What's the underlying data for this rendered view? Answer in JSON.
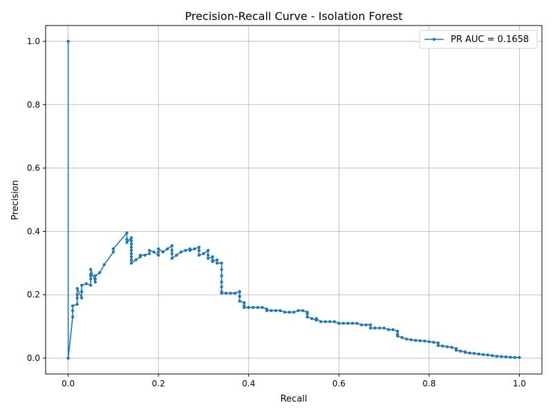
{
  "chart_data": {
    "type": "line",
    "title": "Precision-Recall Curve - Isolation Forest",
    "xlabel": "Recall",
    "ylabel": "Precision",
    "xlim": [
      -0.05,
      1.05
    ],
    "ylim": [
      -0.05,
      1.05
    ],
    "xticks": [
      0.0,
      0.2,
      0.4,
      0.6,
      0.8,
      1.0
    ],
    "yticks": [
      0.0,
      0.2,
      0.4,
      0.6,
      0.8,
      1.0
    ],
    "xtick_labels": [
      "0.0",
      "0.2",
      "0.4",
      "0.6",
      "0.8",
      "1.0"
    ],
    "ytick_labels": [
      "0.0",
      "0.2",
      "0.4",
      "0.6",
      "0.8",
      "1.0"
    ],
    "grid": true,
    "legend_position": "top-right",
    "colors": {
      "series": "#1f77b4",
      "grid": "#b0b0b0"
    },
    "series": [
      {
        "name": "PR AUC = 0.1658",
        "x": [
          0.0,
          0.0,
          0.0,
          0.01,
          0.01,
          0.01,
          0.02,
          0.02,
          0.02,
          0.02,
          0.03,
          0.03,
          0.03,
          0.04,
          0.05,
          0.05,
          0.05,
          0.05,
          0.05,
          0.06,
          0.06,
          0.06,
          0.07,
          0.08,
          0.1,
          0.1,
          0.13,
          0.13,
          0.13,
          0.14,
          0.14,
          0.14,
          0.14,
          0.14,
          0.14,
          0.14,
          0.14,
          0.14,
          0.15,
          0.16,
          0.16,
          0.17,
          0.18,
          0.18,
          0.19,
          0.2,
          0.2,
          0.2,
          0.21,
          0.22,
          0.23,
          0.23,
          0.23,
          0.23,
          0.24,
          0.25,
          0.26,
          0.27,
          0.27,
          0.28,
          0.29,
          0.29,
          0.29,
          0.3,
          0.31,
          0.31,
          0.31,
          0.32,
          0.32,
          0.32,
          0.33,
          0.33,
          0.34,
          0.34,
          0.34,
          0.34,
          0.34,
          0.34,
          0.34,
          0.35,
          0.36,
          0.37,
          0.38,
          0.38,
          0.38,
          0.39,
          0.39,
          0.39,
          0.4,
          0.41,
          0.42,
          0.43,
          0.44,
          0.44,
          0.45,
          0.46,
          0.47,
          0.48,
          0.49,
          0.5,
          0.51,
          0.52,
          0.53,
          0.53,
          0.53,
          0.54,
          0.55,
          0.55,
          0.56,
          0.57,
          0.58,
          0.59,
          0.6,
          0.6,
          0.61,
          0.62,
          0.63,
          0.64,
          0.65,
          0.66,
          0.67,
          0.67,
          0.68,
          0.69,
          0.7,
          0.71,
          0.72,
          0.73,
          0.73,
          0.73,
          0.74,
          0.75,
          0.76,
          0.77,
          0.78,
          0.79,
          0.8,
          0.81,
          0.82,
          0.82,
          0.83,
          0.84,
          0.85,
          0.86,
          0.86,
          0.87,
          0.88,
          0.88,
          0.89,
          0.9,
          0.91,
          0.92,
          0.93,
          0.94,
          0.95,
          0.96,
          0.97,
          0.98,
          0.99,
          1.0
        ],
        "y": [
          1.0,
          0.0,
          0.0,
          0.13,
          0.15,
          0.165,
          0.17,
          0.19,
          0.2,
          0.22,
          0.19,
          0.21,
          0.23,
          0.235,
          0.23,
          0.25,
          0.26,
          0.265,
          0.28,
          0.24,
          0.25,
          0.26,
          0.27,
          0.295,
          0.335,
          0.345,
          0.395,
          0.375,
          0.365,
          0.38,
          0.37,
          0.36,
          0.35,
          0.34,
          0.33,
          0.32,
          0.31,
          0.3,
          0.31,
          0.32,
          0.325,
          0.325,
          0.33,
          0.34,
          0.335,
          0.325,
          0.335,
          0.345,
          0.335,
          0.345,
          0.355,
          0.34,
          0.33,
          0.315,
          0.325,
          0.335,
          0.34,
          0.345,
          0.34,
          0.345,
          0.35,
          0.34,
          0.325,
          0.33,
          0.34,
          0.325,
          0.315,
          0.32,
          0.31,
          0.305,
          0.31,
          0.3,
          0.3,
          0.28,
          0.26,
          0.24,
          0.225,
          0.21,
          0.205,
          0.205,
          0.205,
          0.205,
          0.21,
          0.195,
          0.18,
          0.175,
          0.165,
          0.16,
          0.16,
          0.16,
          0.16,
          0.16,
          0.155,
          0.15,
          0.15,
          0.15,
          0.15,
          0.145,
          0.145,
          0.145,
          0.15,
          0.15,
          0.145,
          0.14,
          0.13,
          0.125,
          0.12,
          0.125,
          0.115,
          0.115,
          0.115,
          0.115,
          0.11,
          0.11,
          0.11,
          0.11,
          0.11,
          0.11,
          0.105,
          0.105,
          0.105,
          0.095,
          0.095,
          0.095,
          0.095,
          0.09,
          0.09,
          0.085,
          0.075,
          0.07,
          0.065,
          0.06,
          0.058,
          0.056,
          0.055,
          0.054,
          0.052,
          0.05,
          0.048,
          0.04,
          0.038,
          0.036,
          0.034,
          0.03,
          0.025,
          0.022,
          0.02,
          0.018,
          0.016,
          0.015,
          0.013,
          0.011,
          0.01,
          0.008,
          0.006,
          0.005,
          0.004,
          0.003,
          0.002,
          0.002
        ]
      }
    ]
  }
}
